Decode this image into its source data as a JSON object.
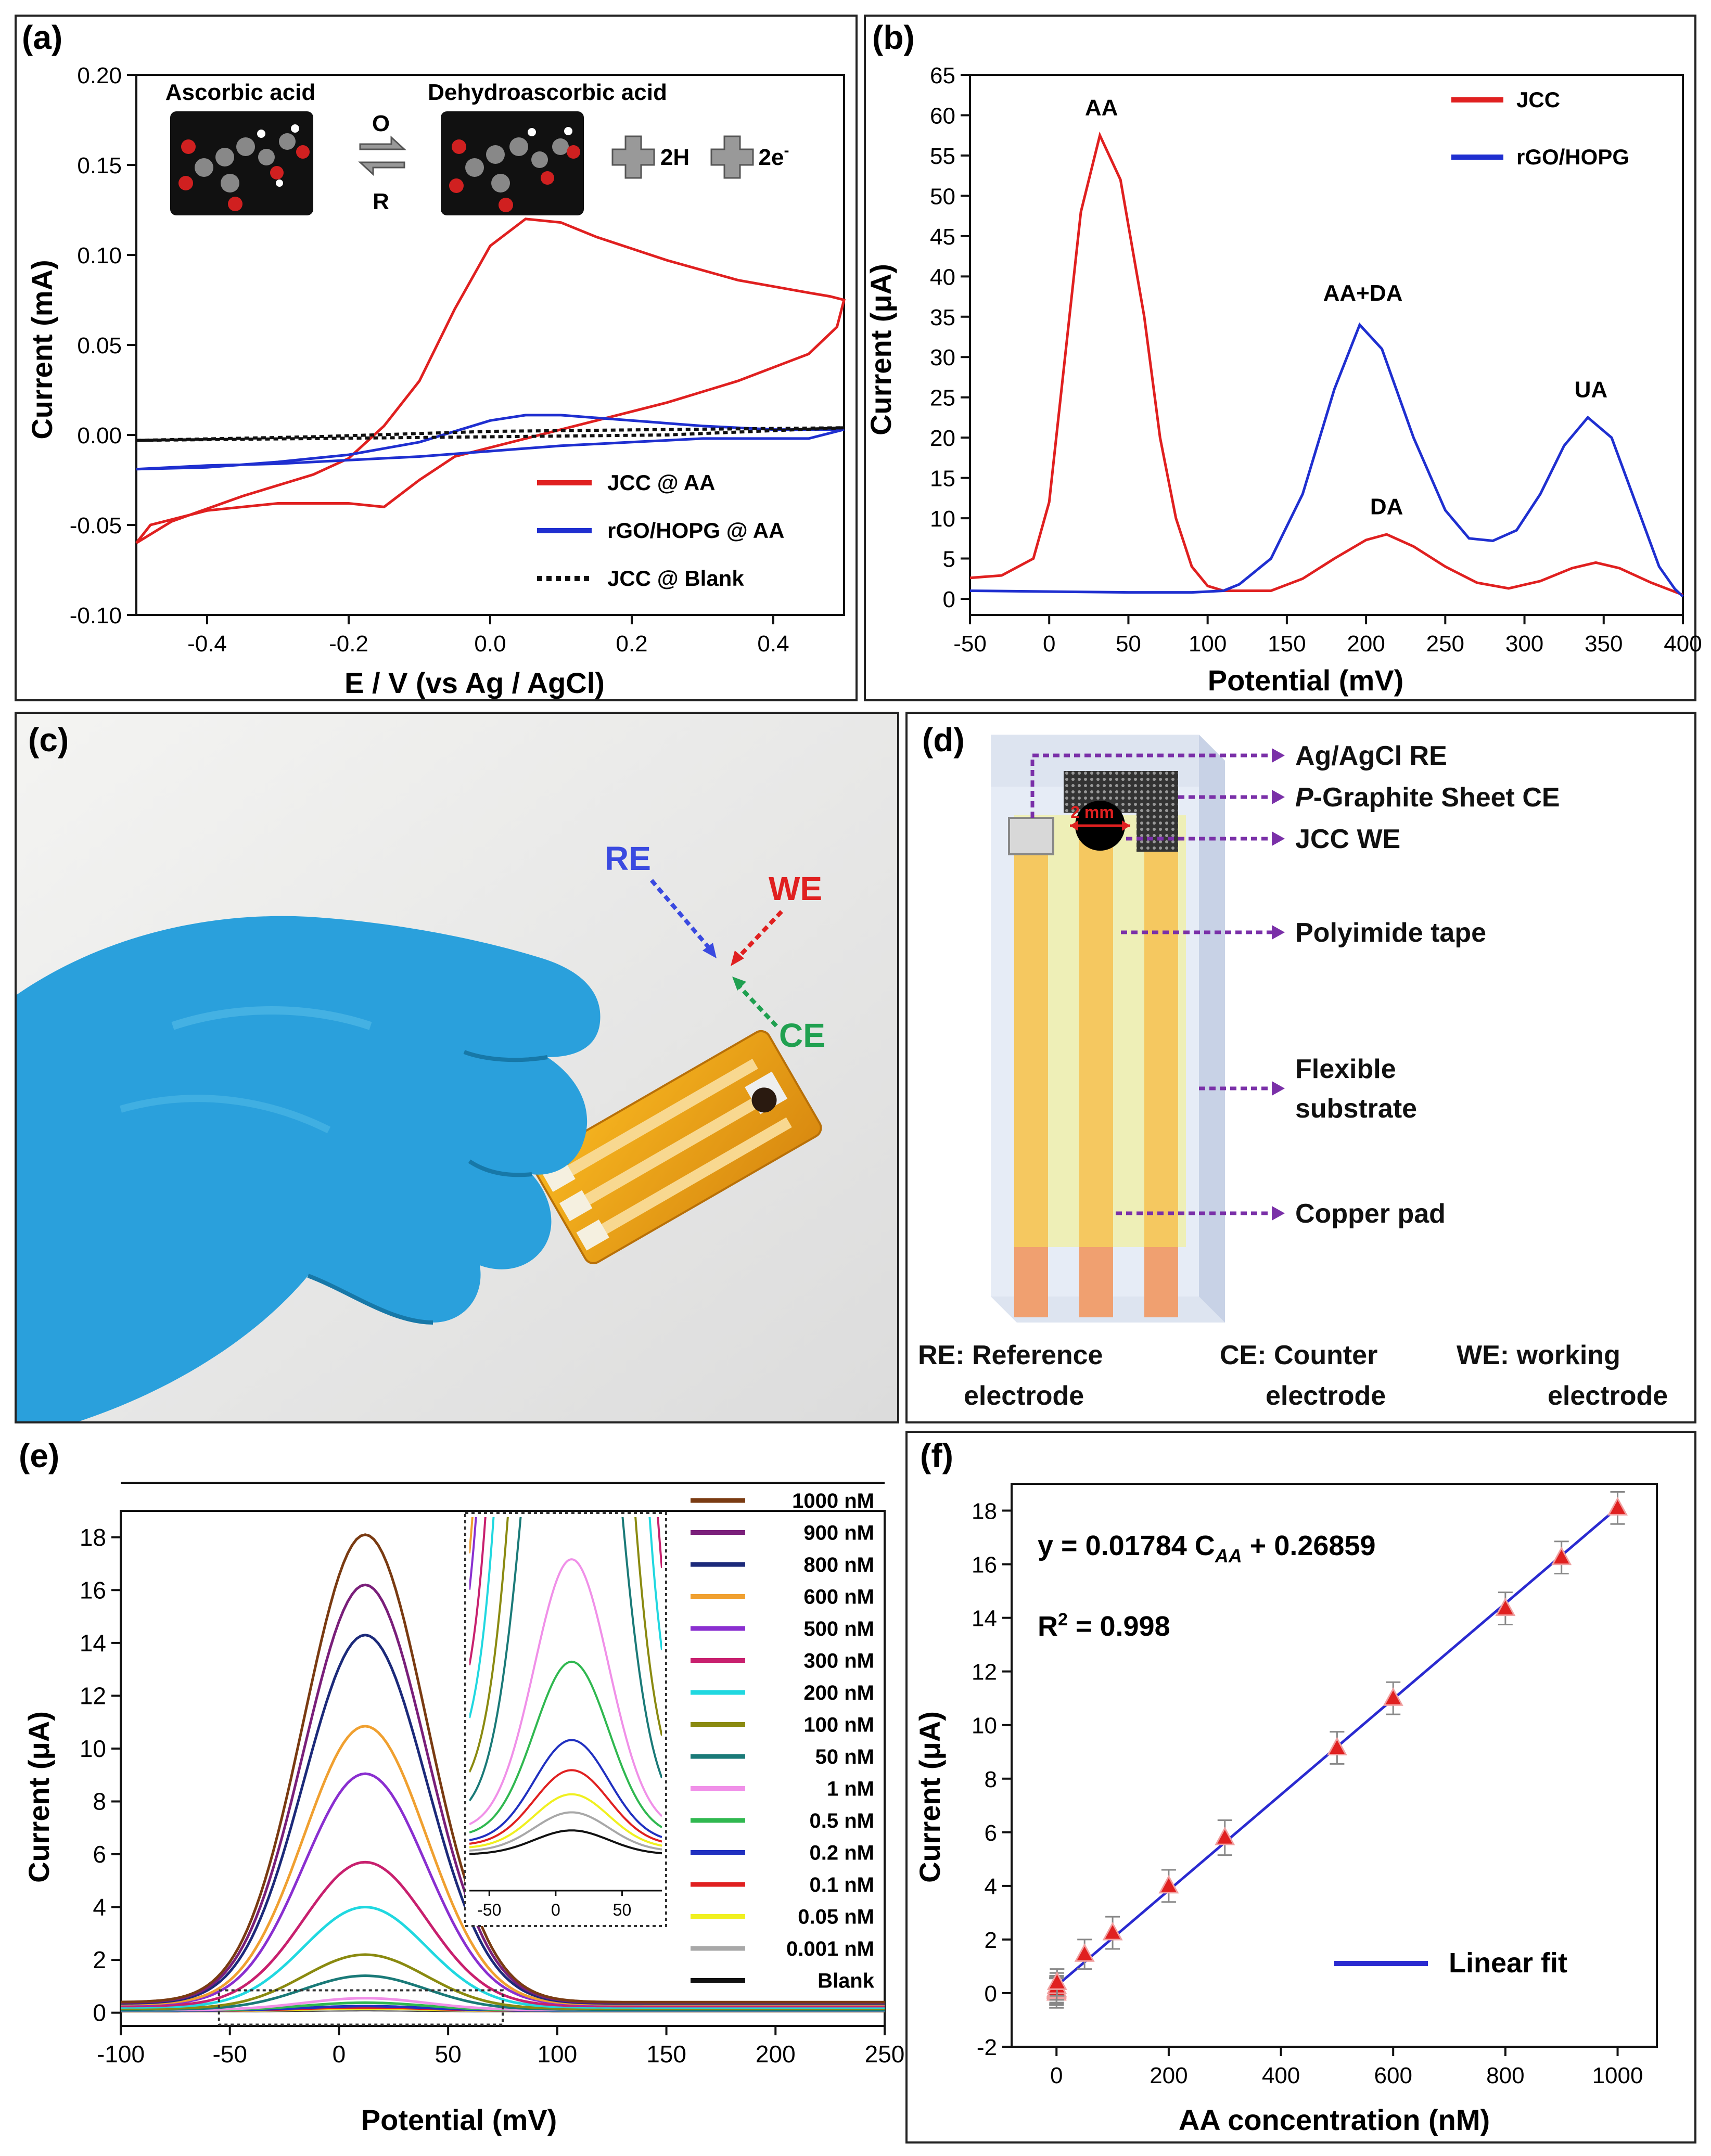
{
  "panels": {
    "a": {
      "label": "(a)",
      "mol1": "Ascorbic acid",
      "mol2": "Dehydroascorbic acid",
      "ox": "O",
      "red": "R",
      "h": "2H",
      "e": "2e",
      "e_sup": "-",
      "legend": [
        "JCC @ AA",
        "rGO/HOPG @ AA",
        "JCC @ Blank"
      ],
      "colors": [
        "#e02020",
        "#1f2fd0",
        "#111111"
      ]
    },
    "b": {
      "label": "(b)",
      "colors": [
        "#e02020",
        "#1f2fd0"
      ]
    },
    "c": {
      "label": "(c)",
      "re": "RE",
      "we": "WE",
      "ce": "CE"
    },
    "d": {
      "label": "(d)",
      "scale": "2 mm",
      "annotations": {
        "re": "Ag/AgCl RE",
        "ce_prefix": "P",
        "ce_rest": "-Graphite Sheet CE",
        "we": "JCC WE",
        "tape": "Polyimide tape",
        "sub1": "Flexible",
        "sub2": "substrate",
        "pad": "Copper pad"
      },
      "footer": {
        "re1": "RE: Reference",
        "re2": "electrode",
        "ce1": "CE: Counter",
        "ce2": "electrode",
        "we1": "WE: working",
        "we2": "electrode"
      }
    },
    "e": {
      "label": "(e)"
    },
    "f": {
      "label": "(f)",
      "eq_a": "y = 0.01784 C",
      "eq_sub": "AA",
      "eq_b": " + 0.26859",
      "r2_a": "R",
      "r2_sup": "2",
      "r2_b": " = 0.998",
      "fit_label": "Linear fit"
    }
  },
  "chart_data": [
    {
      "id": "a",
      "type": "line",
      "xlabel": "E / V (vs Ag / AgCl)",
      "ylabel": "Current (mA)",
      "xlim": [
        -0.5,
        0.5
      ],
      "ylim": [
        -0.1,
        0.2
      ],
      "xticks": [
        -0.4,
        -0.2,
        0.0,
        0.2,
        0.4
      ],
      "xtick_labels": [
        "-0.4",
        "-0.2",
        "0.0",
        "0.2",
        "0.4"
      ],
      "yticks": [
        -0.1,
        -0.05,
        0.0,
        0.05,
        0.1,
        0.15,
        0.2
      ],
      "ytick_labels": [
        "-0.10",
        "-0.05",
        "0.00",
        "0.05",
        "0.10",
        "0.15",
        "0.20"
      ],
      "series": [
        {
          "name": "JCC @ AA",
          "points": [
            [
              -0.5,
              -0.06
            ],
            [
              -0.45,
              -0.048
            ],
            [
              -0.35,
              -0.034
            ],
            [
              -0.25,
              -0.022
            ],
            [
              -0.2,
              -0.013
            ],
            [
              -0.15,
              0.005
            ],
            [
              -0.1,
              0.03
            ],
            [
              -0.05,
              0.07
            ],
            [
              0.0,
              0.105
            ],
            [
              0.05,
              0.12
            ],
            [
              0.1,
              0.118
            ],
            [
              0.15,
              0.11
            ],
            [
              0.25,
              0.097
            ],
            [
              0.35,
              0.086
            ],
            [
              0.45,
              0.079
            ],
            [
              0.48,
              0.077
            ],
            [
              0.5,
              0.075
            ],
            [
              0.49,
              0.06
            ],
            [
              0.45,
              0.045
            ],
            [
              0.35,
              0.03
            ],
            [
              0.25,
              0.018
            ],
            [
              0.15,
              0.008
            ],
            [
              0.05,
              -0.002
            ],
            [
              -0.05,
              -0.012
            ],
            [
              -0.1,
              -0.025
            ],
            [
              -0.15,
              -0.04
            ],
            [
              -0.2,
              -0.038
            ],
            [
              -0.3,
              -0.038
            ],
            [
              -0.4,
              -0.042
            ],
            [
              -0.48,
              -0.05
            ],
            [
              -0.5,
              -0.06
            ]
          ]
        },
        {
          "name": "rGO/HOPG @ AA",
          "points": [
            [
              -0.5,
              -0.019
            ],
            [
              -0.4,
              -0.018
            ],
            [
              -0.3,
              -0.015
            ],
            [
              -0.2,
              -0.011
            ],
            [
              -0.1,
              -0.004
            ],
            [
              0.0,
              0.008
            ],
            [
              0.05,
              0.011
            ],
            [
              0.1,
              0.011
            ],
            [
              0.2,
              0.008
            ],
            [
              0.3,
              0.005
            ],
            [
              0.4,
              0.003
            ],
            [
              0.5,
              0.003
            ],
            [
              0.45,
              -0.002
            ],
            [
              0.3,
              -0.002
            ],
            [
              0.2,
              -0.004
            ],
            [
              0.1,
              -0.006
            ],
            [
              0.0,
              -0.009
            ],
            [
              -0.1,
              -0.012
            ],
            [
              -0.2,
              -0.014
            ],
            [
              -0.3,
              -0.016
            ],
            [
              -0.4,
              -0.017
            ],
            [
              -0.5,
              -0.019
            ]
          ]
        },
        {
          "name": "JCC @ Blank",
          "points": [
            [
              -0.5,
              -0.003
            ],
            [
              -0.25,
              -0.001
            ],
            [
              0.0,
              0.002
            ],
            [
              0.25,
              0.003
            ],
            [
              0.5,
              0.004
            ],
            [
              0.25,
              0.0
            ],
            [
              0.0,
              -0.001
            ],
            [
              -0.25,
              -0.002
            ],
            [
              -0.5,
              -0.003
            ]
          ]
        }
      ]
    },
    {
      "id": "b",
      "type": "line",
      "xlabel": "Potential (mV)",
      "ylabel": "Current (μA)",
      "xlim": [
        -50,
        400
      ],
      "ylim": [
        -2,
        65
      ],
      "xticks": [
        -50,
        0,
        50,
        100,
        150,
        200,
        250,
        300,
        350,
        400
      ],
      "yticks": [
        0,
        5,
        10,
        15,
        20,
        25,
        30,
        35,
        40,
        45,
        50,
        55,
        60,
        65
      ],
      "series": [
        {
          "name": "JCC",
          "points": [
            [
              -50,
              2.6
            ],
            [
              -30,
              2.9
            ],
            [
              -10,
              5
            ],
            [
              0,
              12
            ],
            [
              10,
              30
            ],
            [
              20,
              48
            ],
            [
              32,
              57.5
            ],
            [
              45,
              52
            ],
            [
              60,
              35
            ],
            [
              70,
              20
            ],
            [
              80,
              10
            ],
            [
              90,
              4
            ],
            [
              100,
              1.6
            ],
            [
              110,
              1
            ],
            [
              140,
              1
            ],
            [
              160,
              2.5
            ],
            [
              180,
              5
            ],
            [
              200,
              7.3
            ],
            [
              213,
              8
            ],
            [
              230,
              6.5
            ],
            [
              250,
              4
            ],
            [
              270,
              2
            ],
            [
              290,
              1.3
            ],
            [
              310,
              2.2
            ],
            [
              330,
              3.8
            ],
            [
              345,
              4.5
            ],
            [
              360,
              3.8
            ],
            [
              380,
              2
            ],
            [
              400,
              0.5
            ]
          ]
        },
        {
          "name": "rGO/HOPG",
          "points": [
            [
              -50,
              1
            ],
            [
              50,
              0.8
            ],
            [
              90,
              0.8
            ],
            [
              110,
              1
            ],
            [
              120,
              1.8
            ],
            [
              140,
              5
            ],
            [
              160,
              13
            ],
            [
              180,
              26
            ],
            [
              196,
              34
            ],
            [
              210,
              31
            ],
            [
              230,
              20
            ],
            [
              250,
              11
            ],
            [
              265,
              7.5
            ],
            [
              280,
              7.2
            ],
            [
              295,
              8.5
            ],
            [
              310,
              13
            ],
            [
              325,
              19
            ],
            [
              340,
              22.5
            ],
            [
              355,
              20
            ],
            [
              370,
              12
            ],
            [
              385,
              4
            ],
            [
              395,
              1.2
            ],
            [
              400,
              0.3
            ]
          ]
        }
      ],
      "labels": [
        {
          "text": "AA",
          "x": 33,
          "y": 60
        },
        {
          "text": "AA+DA",
          "x": 198,
          "y": 37
        },
        {
          "text": "DA",
          "x": 213,
          "y": 10.5
        },
        {
          "text": "UA",
          "x": 342,
          "y": 25
        }
      ],
      "legend": [
        "JCC",
        "rGO/HOPG"
      ]
    },
    {
      "id": "e",
      "type": "line",
      "xlabel": "Potential (mV)",
      "ylabel": "Current (μA)",
      "xlim": [
        -100,
        250
      ],
      "ylim": [
        -0.5,
        19
      ],
      "xticks": [
        -100,
        -50,
        0,
        50,
        100,
        150,
        200,
        250
      ],
      "yticks": [
        0,
        2,
        4,
        6,
        8,
        10,
        12,
        14,
        16,
        18
      ],
      "peak_center": 12,
      "peak_width": 28,
      "series": [
        {
          "name": "1000 nM",
          "peak": 18.1,
          "baseline": 0.4,
          "color": "#7a3b12"
        },
        {
          "name": "900 nM",
          "peak": 16.2,
          "baseline": 0.38,
          "color": "#7a1f7a"
        },
        {
          "name": "800 nM",
          "peak": 14.3,
          "baseline": 0.35,
          "color": "#1c2a7a"
        },
        {
          "name": "600 nM",
          "peak": 10.85,
          "baseline": 0.32,
          "color": "#f0a030"
        },
        {
          "name": "500 nM",
          "peak": 9.05,
          "baseline": 0.3,
          "color": "#8a2fd0"
        },
        {
          "name": "300 nM",
          "peak": 5.7,
          "baseline": 0.25,
          "color": "#c8206e"
        },
        {
          "name": "200 nM",
          "peak": 4.0,
          "baseline": 0.2,
          "color": "#20d8e0"
        },
        {
          "name": "100 nM",
          "peak": 2.2,
          "baseline": 0.15,
          "color": "#8a8a10"
        },
        {
          "name": "50 nM",
          "peak": 1.4,
          "baseline": 0.12,
          "color": "#1a7a78"
        },
        {
          "name": "1 nM",
          "peak": 0.55,
          "baseline": 0.1,
          "color": "#f090e8"
        },
        {
          "name": "0.5 nM",
          "peak": 0.38,
          "baseline": 0.09,
          "color": "#30b850"
        },
        {
          "name": "0.2 nM",
          "peak": 0.25,
          "baseline": 0.08,
          "color": "#2030c0"
        },
        {
          "name": "0.1 nM",
          "peak": 0.2,
          "baseline": 0.075,
          "color": "#e02020"
        },
        {
          "name": "0.05 nM",
          "peak": 0.16,
          "baseline": 0.07,
          "color": "#f0f020"
        },
        {
          "name": "0.001 nM",
          "peak": 0.13,
          "baseline": 0.065,
          "color": "#a8a8a8"
        },
        {
          "name": "Blank",
          "peak": 0.1,
          "baseline": 0.06,
          "color": "#111111"
        }
      ],
      "inset": {
        "xlim": [
          -65,
          80
        ],
        "ylim": [
          0.0,
          0.62
        ],
        "xticks": [
          -50,
          0,
          50
        ]
      }
    },
    {
      "id": "f",
      "type": "scatter",
      "xlabel": "AA concentration (nM)",
      "ylabel": "Current (μA)",
      "xlim": [
        -80,
        1070
      ],
      "ylim": [
        -2,
        19
      ],
      "xticks": [
        0,
        200,
        400,
        600,
        800,
        1000
      ],
      "yticks": [
        -2,
        0,
        2,
        4,
        6,
        8,
        10,
        12,
        14,
        16,
        18
      ],
      "x": [
        0,
        0.001,
        0.05,
        0.1,
        0.2,
        0.5,
        1,
        50,
        100,
        200,
        300,
        500,
        600,
        800,
        900,
        1000
      ],
      "y": [
        0.0,
        0.05,
        0.08,
        0.1,
        0.15,
        0.25,
        0.4,
        1.45,
        2.25,
        4.0,
        5.8,
        9.15,
        11.0,
        14.35,
        16.25,
        18.1
      ],
      "err": [
        0.55,
        0.5,
        0.5,
        0.5,
        0.5,
        0.5,
        0.5,
        0.55,
        0.6,
        0.6,
        0.65,
        0.6,
        0.6,
        0.6,
        0.6,
        0.6
      ],
      "fit": {
        "slope": 0.01784,
        "intercept": 0.26859
      },
      "fit_color": "#2a2ad0",
      "marker_color": "#e02020"
    }
  ]
}
